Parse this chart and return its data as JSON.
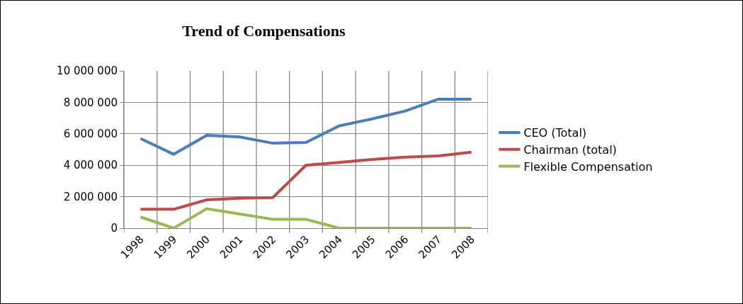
{
  "chart_data": {
    "type": "line",
    "title": "Trend of Compensations",
    "categories": [
      "1998",
      "1999",
      "2000",
      "2001",
      "2002",
      "2003",
      "2004",
      "2005",
      "2006",
      "2007",
      "2008"
    ],
    "series": [
      {
        "name": "CEO (Total)",
        "color": "#4a7ebb",
        "values": [
          5700000,
          4700000,
          5900000,
          5800000,
          5400000,
          5450000,
          6500000,
          6950000,
          7450000,
          8200000,
          8200000
        ]
      },
      {
        "name": "Chairman (total)",
        "color": "#be4b48",
        "values": [
          1200000,
          1200000,
          1800000,
          1900000,
          1950000,
          4000000,
          4180000,
          4370000,
          4520000,
          4600000,
          4830000
        ]
      },
      {
        "name": "Flexible Compensation",
        "color": "#98b954",
        "values": [
          710000,
          0,
          1240000,
          900000,
          560000,
          560000,
          0,
          0,
          0,
          0,
          0
        ]
      }
    ],
    "ylim": [
      0,
      10000000
    ],
    "yticks": [
      {
        "value": 0,
        "label": "0"
      },
      {
        "value": 2000000,
        "label": "2 000 000"
      },
      {
        "value": 4000000,
        "label": "4 000 000"
      },
      {
        "value": 6000000,
        "label": "6 000 000"
      },
      {
        "value": 8000000,
        "label": "8 000 000"
      },
      {
        "value": 10000000,
        "label": "10 000 000"
      }
    ],
    "grid": true,
    "legend": "right",
    "marker": "none",
    "line_style": "solid"
  }
}
